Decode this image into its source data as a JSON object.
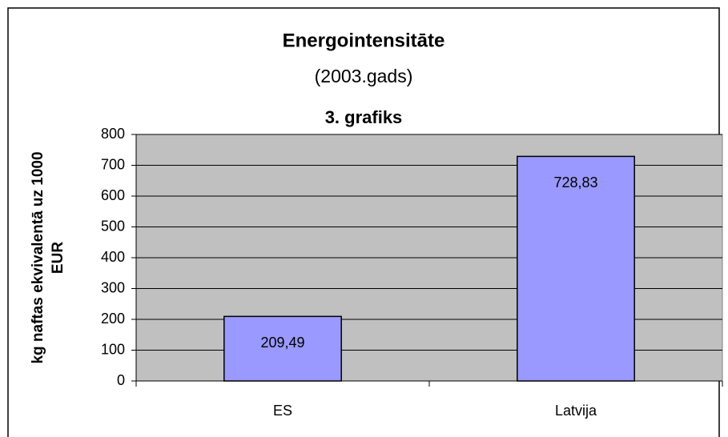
{
  "chart_data": {
    "type": "bar",
    "title": "Energointensitāte",
    "subtitle": "(2003.gads)",
    "annotation": "3. grafiks",
    "y_label": [
      "kg naftas ekvivalentā uz 1000",
      "EUR"
    ],
    "categories": [
      "ES",
      "Latvija"
    ],
    "values": [
      209.49,
      728.83
    ],
    "value_labels": [
      "209,49",
      "728,83"
    ],
    "color": "#9999ff",
    "plot_background": "#c0c0c0",
    "ylim": [
      0,
      800
    ],
    "yticks": [
      0,
      100,
      200,
      300,
      400,
      500,
      600,
      700,
      800
    ],
    "grid": true
  }
}
